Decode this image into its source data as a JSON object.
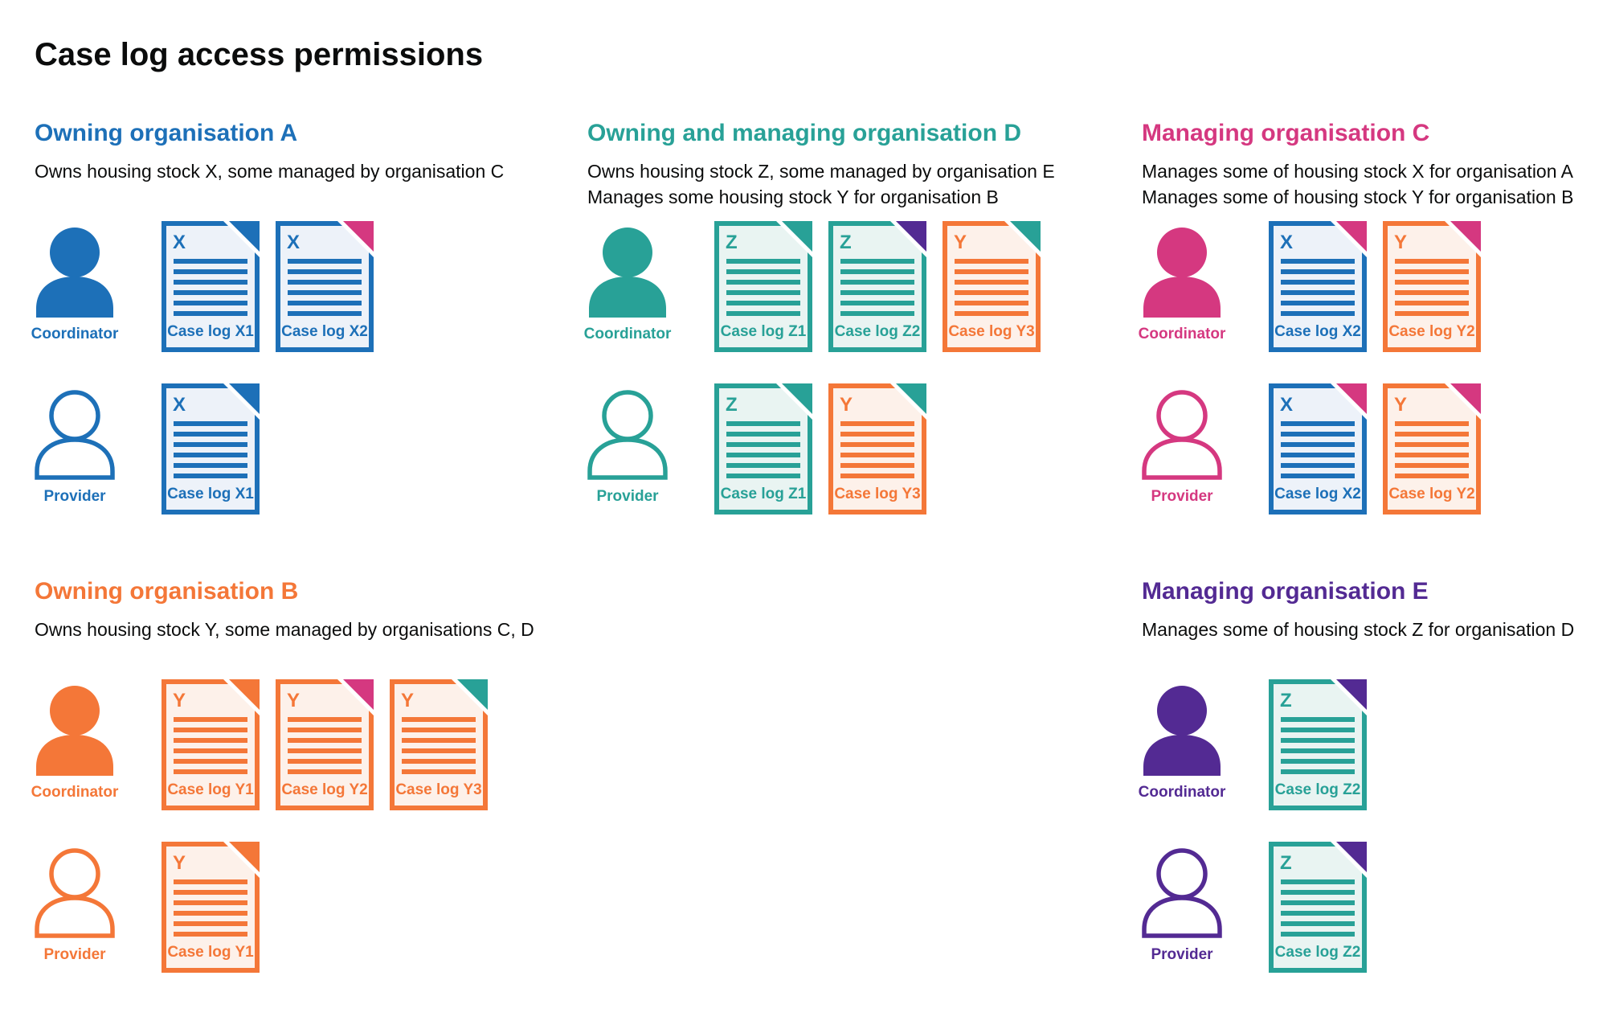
{
  "page": {
    "title": "Case log access permissions",
    "background": "#ffffff",
    "text_color": "#0b0c0c"
  },
  "colors": {
    "blue": "#1d70b8",
    "teal": "#28a197",
    "orange": "#f47738",
    "pink": "#d53880",
    "purple": "#532a93",
    "blue_light": "#edf2f9",
    "teal_light": "#e9f4f2",
    "orange_light": "#fdf1ea"
  },
  "sections": [
    {
      "id": "owning-organisation-a",
      "column": 1,
      "row": 1,
      "color": "blue",
      "title": "Owning organisation A",
      "description": [
        "Owns housing stock X, some managed by organisation C"
      ],
      "rows": [
        {
          "role": "Coordinator",
          "icon": "person-filled-icon",
          "docs": [
            {
              "letter": "X",
              "label": "Case log X1",
              "doc_color": "blue",
              "fold_color": "blue"
            },
            {
              "letter": "X",
              "label": "Case log X2",
              "doc_color": "blue",
              "fold_color": "pink"
            }
          ]
        },
        {
          "role": "Provider",
          "icon": "person-outline-icon",
          "docs": [
            {
              "letter": "X",
              "label": "Case log X1",
              "doc_color": "blue",
              "fold_color": "blue"
            }
          ]
        }
      ]
    },
    {
      "id": "owning-and-managing-organisation-d",
      "column": 2,
      "row": 1,
      "color": "teal",
      "title": "Owning and managing organisation D",
      "description": [
        "Owns housing stock Z, some managed by organisation E",
        "Manages some housing stock Y for organisation B"
      ],
      "rows": [
        {
          "role": "Coordinator",
          "icon": "person-filled-icon",
          "docs": [
            {
              "letter": "Z",
              "label": "Case log Z1",
              "doc_color": "teal",
              "fold_color": "teal"
            },
            {
              "letter": "Z",
              "label": "Case log Z2",
              "doc_color": "teal",
              "fold_color": "purple"
            },
            {
              "letter": "Y",
              "label": "Case log Y3",
              "doc_color": "orange",
              "fold_color": "teal"
            }
          ]
        },
        {
          "role": "Provider",
          "icon": "person-outline-icon",
          "docs": [
            {
              "letter": "Z",
              "label": "Case log Z1",
              "doc_color": "teal",
              "fold_color": "teal"
            },
            {
              "letter": "Y",
              "label": "Case log Y3",
              "doc_color": "orange",
              "fold_color": "teal"
            }
          ]
        }
      ]
    },
    {
      "id": "managing-organisation-c",
      "column": 3,
      "row": 1,
      "color": "pink",
      "title": "Managing organisation C",
      "description": [
        "Manages some of housing stock X for organisation A",
        "Manages some of housing stock Y for organisation B"
      ],
      "rows": [
        {
          "role": "Coordinator",
          "icon": "person-filled-icon",
          "docs": [
            {
              "letter": "X",
              "label": "Case log X2",
              "doc_color": "blue",
              "fold_color": "pink"
            },
            {
              "letter": "Y",
              "label": "Case log Y2",
              "doc_color": "orange",
              "fold_color": "pink"
            }
          ]
        },
        {
          "role": "Provider",
          "icon": "person-outline-icon",
          "docs": [
            {
              "letter": "X",
              "label": "Case log X2",
              "doc_color": "blue",
              "fold_color": "pink"
            },
            {
              "letter": "Y",
              "label": "Case log Y2",
              "doc_color": "orange",
              "fold_color": "pink"
            }
          ]
        }
      ]
    },
    {
      "id": "owning-organisation-b",
      "column": 1,
      "row": 2,
      "color": "orange",
      "title": "Owning organisation B",
      "description": [
        "Owns housing stock Y, some managed by organisations C, D"
      ],
      "rows": [
        {
          "role": "Coordinator",
          "icon": "person-filled-icon",
          "docs": [
            {
              "letter": "Y",
              "label": "Case log Y1",
              "doc_color": "orange",
              "fold_color": "orange"
            },
            {
              "letter": "Y",
              "label": "Case log Y2",
              "doc_color": "orange",
              "fold_color": "pink"
            },
            {
              "letter": "Y",
              "label": "Case log Y3",
              "doc_color": "orange",
              "fold_color": "teal"
            }
          ]
        },
        {
          "role": "Provider",
          "icon": "person-outline-icon",
          "docs": [
            {
              "letter": "Y",
              "label": "Case log Y1",
              "doc_color": "orange",
              "fold_color": "orange"
            }
          ]
        }
      ]
    },
    {
      "id": "managing-organisation-e",
      "column": 3,
      "row": 2,
      "color": "purple",
      "title": "Managing organisation E",
      "description": [
        "Manages some of housing stock Z for organisation D"
      ],
      "rows": [
        {
          "role": "Coordinator",
          "icon": "person-filled-icon",
          "docs": [
            {
              "letter": "Z",
              "label": "Case log Z2",
              "doc_color": "teal",
              "fold_color": "purple"
            }
          ]
        },
        {
          "role": "Provider",
          "icon": "person-outline-icon",
          "docs": [
            {
              "letter": "Z",
              "label": "Case log Z2",
              "doc_color": "teal",
              "fold_color": "purple"
            }
          ]
        }
      ]
    }
  ]
}
